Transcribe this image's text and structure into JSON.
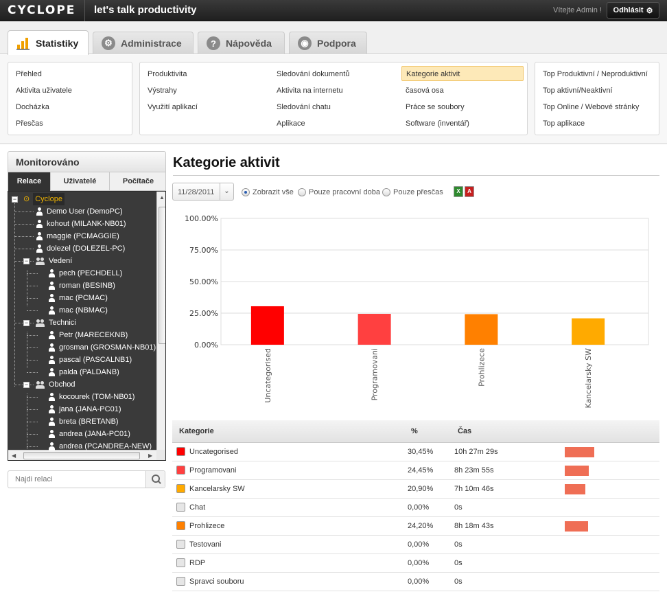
{
  "header": {
    "logo": "CYCLOPE",
    "tagline": "let's talk productivity",
    "welcome": "Vítejte Admin !",
    "logout_label": "Odhlásit"
  },
  "main_tabs": [
    {
      "label": "Statistiky",
      "icon": "bar-chart-icon",
      "active": true
    },
    {
      "label": "Administrace",
      "icon": "gear-icon",
      "active": false
    },
    {
      "label": "Nápověda",
      "icon": "help-icon",
      "active": false
    },
    {
      "label": "Podpora",
      "icon": "support-icon",
      "active": false
    }
  ],
  "submenu": {
    "col1": [
      "Přehled",
      "Aktivita uživatele",
      "Docházka",
      "Přesčas"
    ],
    "col2": [
      "Produktivita",
      "Výstrahy",
      "Využití aplikací"
    ],
    "col3": [
      "Sledování dokumentů",
      "Aktivita na internetu",
      "Sledování chatu",
      "Aplikace"
    ],
    "col4": [
      "Kategorie aktivit",
      "časová osa",
      "Práce se soubory",
      "Software (inventář)"
    ],
    "col5": [
      "Top Produktivní / Neproduktivní",
      "Top aktivní/Neaktivní",
      "Top Online / Webové stránky",
      "Top aplikace"
    ],
    "active": "Kategorie aktivit"
  },
  "left_panel": {
    "title": "Monitorováno",
    "tabs": [
      "Relace",
      "Uživatelé",
      "Počítače"
    ],
    "tree": [
      {
        "label": "Cyclope",
        "type": "root",
        "level": 0
      },
      {
        "label": "Demo User (DemoPC)",
        "type": "user",
        "level": 1
      },
      {
        "label": "kohout (MILANK-NB01)",
        "type": "user",
        "level": 1
      },
      {
        "label": "maggie (PCMAGGIE)",
        "type": "user",
        "level": 1
      },
      {
        "label": "dolezel (DOLEZEL-PC)",
        "type": "user",
        "level": 1
      },
      {
        "label": "Vedení",
        "type": "group",
        "level": 1
      },
      {
        "label": "pech (PECHDELL)",
        "type": "user",
        "level": 2
      },
      {
        "label": "roman (BESINB)",
        "type": "user",
        "level": 2
      },
      {
        "label": "mac (PCMAC)",
        "type": "user",
        "level": 2
      },
      {
        "label": "mac (NBMAC)",
        "type": "user",
        "level": 2
      },
      {
        "label": "Technici",
        "type": "group",
        "level": 1
      },
      {
        "label": "Petr (MARECEKNB)",
        "type": "user",
        "level": 2
      },
      {
        "label": "grosman (GROSMAN-NB01)",
        "type": "user",
        "level": 2
      },
      {
        "label": "pascal (PASCALNB1)",
        "type": "user",
        "level": 2
      },
      {
        "label": "palda (PALDANB)",
        "type": "user",
        "level": 2
      },
      {
        "label": "Obchod",
        "type": "group",
        "level": 1
      },
      {
        "label": "kocourek (TOM-NB01)",
        "type": "user",
        "level": 2
      },
      {
        "label": "jana (JANA-PC01)",
        "type": "user",
        "level": 2
      },
      {
        "label": "breta (BRETANB)",
        "type": "user",
        "level": 2
      },
      {
        "label": "andrea (JANA-PC01)",
        "type": "user",
        "level": 2
      },
      {
        "label": "andrea (PCANDREA-NEW)",
        "type": "user",
        "level": 2
      }
    ],
    "search_placeholder": "Najdi relaci"
  },
  "content": {
    "title": "Kategorie aktivit",
    "date": "11/28/2011",
    "filters": [
      {
        "label": "Zobrazit vše",
        "selected": true
      },
      {
        "label": "Pouze pracovní doba",
        "selected": false
      },
      {
        "label": "Pouze přesčas",
        "selected": false
      }
    ]
  },
  "chart_data": {
    "type": "bar",
    "categories": [
      "Uncategorised",
      "Programovani",
      "Prohlizece",
      "Kancelarsky SW"
    ],
    "values": [
      30.45,
      24.45,
      24.2,
      20.9
    ],
    "colors": [
      "#ff0000",
      "#ff4040",
      "#ff8000",
      "#ffaa00"
    ],
    "yticks": [
      "100.00%",
      "75.00%",
      "50.00%",
      "25.00%",
      "0.00%"
    ],
    "ylim": [
      0,
      100
    ],
    "grid": true
  },
  "table": {
    "headers": [
      "Kategorie",
      "%",
      "Čas"
    ],
    "rows": [
      {
        "name": "Uncategorised",
        "pct": "30,45%",
        "time": "10h 27m 29s",
        "color": "#ff0000",
        "share": 30.45
      },
      {
        "name": "Programovani",
        "pct": "24,45%",
        "time": "8h 23m 55s",
        "color": "#ff4040",
        "share": 24.45
      },
      {
        "name": "Kancelarsky SW",
        "pct": "20,90%",
        "time": "7h 10m 46s",
        "color": "#ffaa00",
        "share": 20.9
      },
      {
        "name": "Chat",
        "pct": "0,00%",
        "time": "0s",
        "color": "#e6e6e6",
        "share": 0
      },
      {
        "name": "Prohlizece",
        "pct": "24,20%",
        "time": "8h 18m 43s",
        "color": "#ff8000",
        "share": 24.2
      },
      {
        "name": "Testovani",
        "pct": "0,00%",
        "time": "0s",
        "color": "#e6e6e6",
        "share": 0
      },
      {
        "name": "RDP",
        "pct": "0,00%",
        "time": "0s",
        "color": "#e6e6e6",
        "share": 0
      },
      {
        "name": "Spravci souboru",
        "pct": "0,00%",
        "time": "0s",
        "color": "#e6e6e6",
        "share": 0
      }
    ]
  }
}
